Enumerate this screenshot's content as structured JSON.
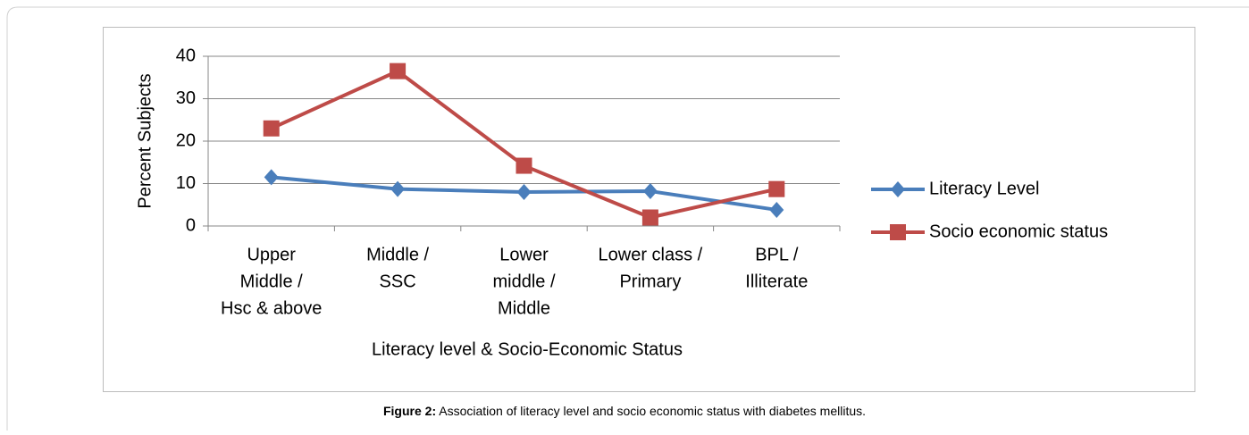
{
  "chart_data": {
    "type": "line",
    "x_label": "Literacy level & Socio-Economic Status",
    "y_label": "Percent Subjects",
    "categories": [
      [
        "Upper",
        "Middle /",
        "Hsc & above"
      ],
      [
        "Middle /",
        "SSC"
      ],
      [
        "Lower",
        "middle /",
        "Middle"
      ],
      [
        "Lower class /",
        "Primary"
      ],
      [
        "BPL /",
        "Illiterate"
      ]
    ],
    "series": [
      {
        "name": "Literacy Level",
        "color": "#4a7ebb",
        "marker": "diamond",
        "values": [
          11.5,
          8.7,
          8.0,
          8.2,
          3.8
        ]
      },
      {
        "name": "Socio economic status",
        "color": "#be4b48",
        "marker": "square",
        "values": [
          23.0,
          36.5,
          14.2,
          2.0,
          8.7
        ]
      }
    ],
    "ylim": [
      0,
      40
    ],
    "yticks": [
      0,
      10,
      20,
      30,
      40
    ],
    "grid": true,
    "legend": "right"
  },
  "caption": {
    "label": "Figure 2:",
    "text": " Association of literacy level and socio economic status with diabetes mellitus."
  }
}
